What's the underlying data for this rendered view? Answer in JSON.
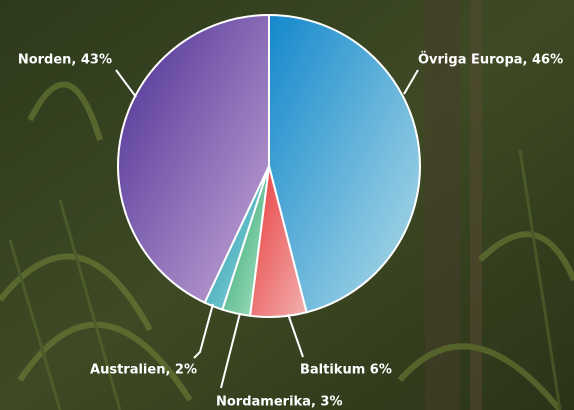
{
  "chart_data": {
    "type": "pie",
    "values": [
      46,
      6,
      3,
      2,
      43
    ],
    "value_labels": [
      "Övriga Europa, 46%",
      "Baltikum 6%",
      "Nordamerika, 3%",
      "Australien, 2%",
      "Norden, 43%"
    ],
    "colors": [
      [
        "#1488cc",
        "#b2dde8"
      ],
      [
        "#e83a3a",
        "#f2b0b0"
      ],
      [
        "#22a066",
        "#aee4c8"
      ],
      [
        "#1a98a8",
        "#9ad8e0"
      ],
      [
        "#4a2e94",
        "#c6a8d6"
      ]
    ],
    "start_angle": -90
  }
}
